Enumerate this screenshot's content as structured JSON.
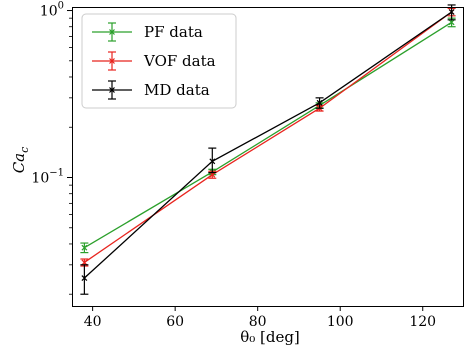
{
  "chart_data": {
    "type": "line",
    "title": "",
    "xlabel": "θ₀ [deg]",
    "ylabel": "Ca_c",
    "ylabel_main": "Ca",
    "ylabel_sub": "c",
    "xlim": [
      35,
      130
    ],
    "ylim": [
      0.017,
      1.05
    ],
    "yscale": "log",
    "grid": false,
    "legend_position": "top-left",
    "x_ticks": [
      40,
      60,
      80,
      100,
      120
    ],
    "x_tick_labels": [
      "40",
      "60",
      "80",
      "100",
      "120"
    ],
    "y_ticks": [
      0.1,
      1
    ],
    "y_tick_labels": [
      {
        "base": "10",
        "exp": "−1"
      },
      {
        "base": "10",
        "exp": "0"
      }
    ],
    "series": [
      {
        "name": "PF data",
        "color": "#2ca02c",
        "x": [
          38,
          69,
          95,
          127
        ],
        "y": [
          0.038,
          0.108,
          0.27,
          0.85
        ],
        "err_low": [
          0.0025,
          0.004,
          0.01,
          0.05
        ],
        "err_high": [
          0.0025,
          0.004,
          0.01,
          0.05
        ]
      },
      {
        "name": "VOF data",
        "color": "#e8251f",
        "x": [
          38,
          69,
          95,
          127
        ],
        "y": [
          0.031,
          0.104,
          0.26,
          0.98
        ],
        "err_low": [
          0.0015,
          0.005,
          0.01,
          0.05
        ],
        "err_high": [
          0.0015,
          0.005,
          0.01,
          0.05
        ]
      },
      {
        "name": "MD data",
        "color": "#000000",
        "x": [
          38,
          69,
          95,
          127
        ],
        "y": [
          0.025,
          0.125,
          0.28,
          0.98
        ],
        "err_low": [
          0.005,
          0.018,
          0.02,
          0.1
        ],
        "err_high": [
          0.005,
          0.025,
          0.02,
          0.1
        ]
      }
    ]
  }
}
